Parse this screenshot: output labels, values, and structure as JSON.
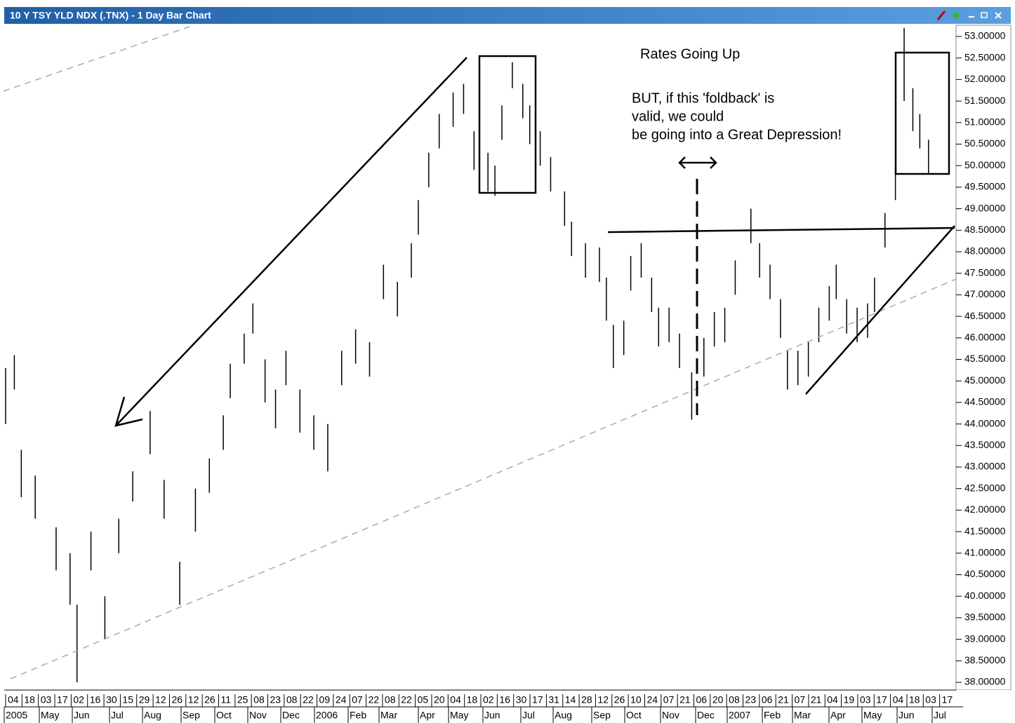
{
  "chart_data": {
    "type": "ohlc",
    "title": "10 Y TSY YLD NDX (.TNX) - 1 Day Bar Chart",
    "annotations": [
      "Rates Going Up",
      "BUT, if this 'foldback' is",
      "valid, we could",
      "be going into a Great Depression!"
    ],
    "x": [
      0,
      5,
      9,
      17,
      29,
      37,
      41,
      49,
      57,
      65,
      73,
      83,
      91,
      100,
      109,
      117,
      125,
      129,
      137,
      142,
      149,
      155,
      161,
      169,
      177,
      185,
      193,
      201,
      209,
      217,
      225,
      233,
      237,
      243,
      249,
      257,
      263,
      269,
      277,
      281,
      285,
      291,
      297,
      301,
      307,
      313,
      321,
      325,
      333,
      341,
      345,
      349,
      355,
      359,
      365,
      371,
      375,
      381,
      387,
      394,
      401,
      407,
      413,
      419,
      428,
      433,
      439,
      445,
      449,
      455,
      461,
      467,
      473,
      477,
      483,
      489,
      495,
      499,
      505,
      511,
      516,
      521,
      525,
      530
    ],
    "high": [
      45.3,
      45.6,
      43.4,
      42.8,
      41.6,
      41.0,
      39.8,
      41.5,
      40.0,
      41.8,
      42.9,
      44.3,
      42.7,
      40.8,
      42.5,
      43.2,
      44.2,
      45.4,
      46.1,
      46.8,
      45.5,
      44.8,
      45.7,
      44.8,
      44.2,
      44.0,
      45.7,
      46.2,
      45.9,
      47.7,
      47.3,
      48.2,
      49.2,
      50.3,
      51.2,
      51.7,
      51.9,
      50.8,
      50.3,
      50.0,
      51.4,
      52.4,
      51.9,
      51.4,
      50.8,
      50.2,
      49.4,
      48.7,
      48.2,
      48.1,
      47.4,
      46.3,
      46.4,
      47.9,
      48.2,
      47.4,
      46.7,
      46.7,
      46.1,
      45.2,
      46.0,
      46.6,
      46.7,
      47.8,
      49.0,
      48.2,
      47.7,
      46.9,
      45.7,
      45.7,
      45.9,
      46.7,
      47.2,
      47.7,
      46.9,
      46.7,
      46.8,
      47.4,
      48.9,
      50.0,
      53.2,
      51.8,
      51.2,
      50.6
    ],
    "low": [
      44.0,
      44.8,
      42.3,
      41.8,
      40.6,
      39.8,
      38.0,
      40.6,
      39.0,
      41.0,
      42.2,
      43.3,
      41.8,
      39.8,
      41.5,
      42.4,
      43.4,
      44.6,
      45.4,
      46.1,
      44.5,
      43.9,
      44.9,
      43.8,
      43.4,
      42.9,
      44.9,
      45.4,
      45.1,
      46.9,
      46.5,
      47.4,
      48.4,
      49.5,
      50.4,
      50.9,
      51.2,
      49.9,
      49.4,
      49.3,
      50.6,
      51.8,
      51.1,
      50.5,
      50.0,
      49.4,
      48.6,
      47.9,
      47.4,
      47.3,
      46.4,
      45.3,
      45.6,
      47.1,
      47.4,
      46.6,
      45.8,
      45.9,
      45.3,
      44.1,
      45.1,
      45.8,
      45.9,
      47.0,
      48.2,
      47.4,
      46.9,
      46.0,
      44.8,
      44.9,
      45.1,
      45.9,
      46.4,
      46.9,
      46.1,
      45.9,
      46.0,
      46.6,
      48.1,
      49.2,
      51.5,
      50.8,
      50.4,
      49.8
    ],
    "xlim": [
      0,
      545
    ],
    "ylim": [
      38,
      53
    ],
    "yticks": [
      {
        "value": 53,
        "label": "53.00000"
      },
      {
        "value": 52.5,
        "label": "52.50000"
      },
      {
        "value": 52,
        "label": "52.00000"
      },
      {
        "value": 51.5,
        "label": "51.50000"
      },
      {
        "value": 51,
        "label": "51.00000"
      },
      {
        "value": 50.5,
        "label": "50.50000"
      },
      {
        "value": 50,
        "label": "50.00000"
      },
      {
        "value": 49.5,
        "label": "49.50000"
      },
      {
        "value": 49,
        "label": "49.00000"
      },
      {
        "value": 48.5,
        "label": "48.50000"
      },
      {
        "value": 48,
        "label": "48.00000"
      },
      {
        "value": 47.5,
        "label": "47.50000"
      },
      {
        "value": 47,
        "label": "47.00000"
      },
      {
        "value": 46.5,
        "label": "46.50000"
      },
      {
        "value": 46,
        "label": "46.00000"
      },
      {
        "value": 45.5,
        "label": "45.50000"
      },
      {
        "value": 45,
        "label": "45.00000"
      },
      {
        "value": 44.5,
        "label": "44.50000"
      },
      {
        "value": 44,
        "label": "44.00000"
      },
      {
        "value": 43.5,
        "label": "43.50000"
      },
      {
        "value": 43,
        "label": "43.00000"
      },
      {
        "value": 42.5,
        "label": "42.50000"
      },
      {
        "value": 42,
        "label": "42.00000"
      },
      {
        "value": 41.5,
        "label": "41.50000"
      },
      {
        "value": 41,
        "label": "41.00000"
      },
      {
        "value": 40.5,
        "label": "40.50000"
      },
      {
        "value": 40,
        "label": "40.00000"
      },
      {
        "value": 39.5,
        "label": "39.50000"
      },
      {
        "value": 39,
        "label": "39.00000"
      },
      {
        "value": 38.5,
        "label": "38.50000"
      },
      {
        "value": 38,
        "label": "38.00000"
      }
    ],
    "day_labels": [
      "04",
      "18",
      "03",
      "17",
      "02",
      "16",
      "30",
      "15",
      "29",
      "12",
      "26",
      "12",
      "26",
      "11",
      "25",
      "08",
      "23",
      "08",
      "22",
      "09",
      "24",
      "07",
      "22",
      "08",
      "22",
      "05",
      "20",
      "04",
      "18",
      "02",
      "16",
      "30",
      "17",
      "31",
      "14",
      "28",
      "12",
      "26",
      "10",
      "24",
      "07",
      "21",
      "06",
      "20",
      "08",
      "23",
      "06",
      "21",
      "07",
      "21",
      "04",
      "19",
      "03",
      "17",
      "04",
      "18",
      "03",
      "17"
    ],
    "month_labels": [
      "2005",
      "May",
      "Jun",
      "Jul",
      "Aug",
      "Sep",
      "Oct",
      "Nov",
      "Dec",
      "2006",
      "Feb",
      "Mar",
      "Apr",
      "May",
      "Jun",
      "Jul",
      "Aug",
      "Sep",
      "Oct",
      "Nov",
      "Dec",
      "2007",
      "Feb",
      "Mar",
      "Apr",
      "May",
      "Jun",
      "Jul"
    ],
    "color": "#000000"
  }
}
